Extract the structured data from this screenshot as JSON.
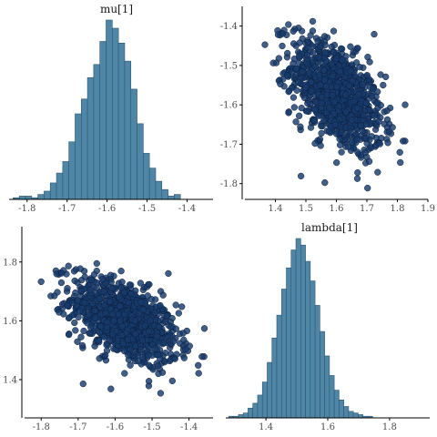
{
  "colors": {
    "hist_fill": "#4f86a6",
    "hist_stroke": "#2e5770",
    "point_fill": "#173a6b",
    "point_stroke": "#0b1e3d",
    "axis": "#000000",
    "background": "#ffffff"
  },
  "chart_data": [
    {
      "type": "bar",
      "title": "mu[1]",
      "xlabel": "",
      "ylabel": "",
      "xlim": [
        -1.845,
        -1.335
      ],
      "x_ticks": [
        -1.8,
        -1.7,
        -1.6,
        -1.5,
        -1.4
      ],
      "x_tick_labels": [
        "-1.8",
        "-1.7",
        "-1.6",
        "-1.5",
        "-1.4"
      ],
      "bin_width": 0.0155,
      "bin_start": -1.835,
      "counts": [
        1,
        2,
        2,
        1,
        3,
        5,
        10,
        16,
        23,
        35,
        52,
        61,
        74,
        82,
        96,
        109,
        104,
        95,
        84,
        67,
        46,
        28,
        19,
        11,
        6,
        2,
        3
      ],
      "grid": false
    },
    {
      "type": "scatter",
      "title": "",
      "xlabel": "",
      "ylabel": "",
      "xlim": [
        1.3,
        1.9
      ],
      "ylim": [
        -1.84,
        -1.35
      ],
      "x_ticks": [
        1.4,
        1.5,
        1.6,
        1.7,
        1.8,
        1.9
      ],
      "x_tick_labels": [
        "1.4",
        "1.5",
        "1.6",
        "1.7",
        "1.8",
        "1.9"
      ],
      "y_ticks": [
        -1.8,
        -1.7,
        -1.6,
        -1.5,
        -1.4
      ],
      "y_tick_labels": [
        "-1.8",
        "-1.7",
        "-1.6",
        "-1.5",
        "-1.4"
      ],
      "n_points": 1000,
      "x_center": 1.6,
      "y_center": -1.575,
      "x_sd": 0.075,
      "y_sd": 0.072,
      "correlation": -0.5,
      "grid": false
    },
    {
      "type": "scatter",
      "title": "",
      "xlabel": "",
      "ylabel": "",
      "xlim": [
        -1.845,
        -1.335
      ],
      "ylim": [
        1.27,
        1.92
      ],
      "x_ticks": [
        -1.8,
        -1.7,
        -1.6,
        -1.5,
        -1.4
      ],
      "x_tick_labels": [
        "-1.8",
        "-1.7",
        "-1.6",
        "-1.5",
        "-1.4"
      ],
      "y_ticks": [
        1.4,
        1.6,
        1.8
      ],
      "y_tick_labels": [
        "1.4",
        "1.6",
        "1.8"
      ],
      "n_points": 1000,
      "x_center": -1.575,
      "y_center": 1.6,
      "x_sd": 0.072,
      "y_sd": 0.075,
      "correlation": -0.5,
      "grid": false
    },
    {
      "type": "bar",
      "title": "lambda[1]",
      "xlabel": "",
      "ylabel": "",
      "xlim": [
        1.27,
        1.93
      ],
      "x_ticks": [
        1.4,
        1.6,
        1.8
      ],
      "x_tick_labels": [
        "1.4",
        "1.6",
        "1.8"
      ],
      "bin_width": 0.0155,
      "bin_start": 1.28,
      "counts": [
        1,
        1,
        2,
        3,
        6,
        9,
        14,
        22,
        34,
        49,
        63,
        79,
        92,
        103,
        110,
        106,
        96,
        84,
        69,
        53,
        38,
        26,
        17,
        11,
        7,
        4,
        3,
        2,
        1,
        1
      ],
      "grid": false
    }
  ]
}
